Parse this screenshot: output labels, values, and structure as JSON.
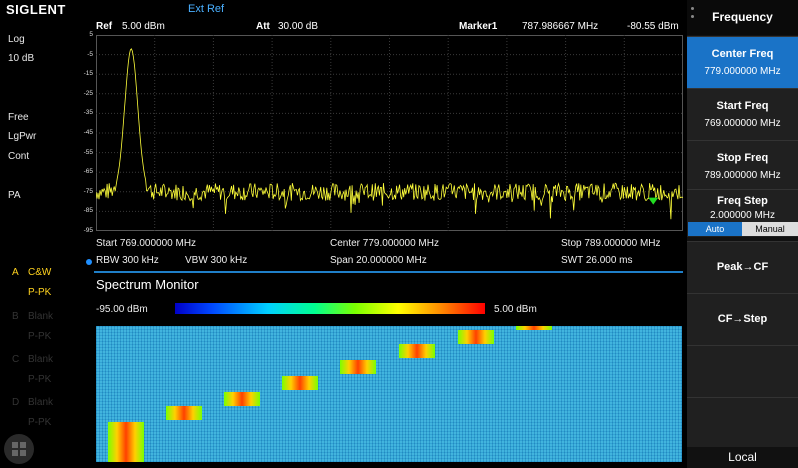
{
  "brand": "SIGLENT",
  "ext_ref": "Ext Ref",
  "left_status": {
    "scale": "Log",
    "div": "10 dB",
    "trigger": "Free",
    "det": "LgPwr",
    "sweep": "Cont",
    "preamp": "PA"
  },
  "traces": [
    {
      "letter": "A",
      "mode": "C&W",
      "det": "P-PK"
    },
    {
      "letter": "B",
      "mode": "Blank",
      "det": "P-PK"
    },
    {
      "letter": "C",
      "mode": "Blank",
      "det": "P-PK"
    },
    {
      "letter": "D",
      "mode": "Blank",
      "det": "P-PK"
    }
  ],
  "header": {
    "ref_label": "Ref",
    "ref_value": "5.00 dBm",
    "att_label": "Att",
    "att_value": "30.00 dB",
    "marker_label": "Marker1",
    "marker_freq": "787.986667 MHz",
    "marker_level": "-80.55 dBm"
  },
  "y_ticks": [
    "5",
    "-5",
    "-15",
    "-25",
    "-35",
    "-45",
    "-55",
    "-65",
    "-75",
    "-85",
    "-95"
  ],
  "freq_info": {
    "start": "Start  769.000000 MHz",
    "center": "Center  779.000000 MHz",
    "stop": "Stop  789.000000 MHz",
    "rbw": "RBW  300 kHz",
    "vbw": "VBW  300 kHz",
    "span": "Span    20.000000 MHz",
    "swt": "SWT  26.000 ms"
  },
  "spectrum_monitor": {
    "title": "Spectrum Monitor",
    "min": "-95.00 dBm",
    "max": "5.00 dBm"
  },
  "chart_data": {
    "type": "line",
    "x_unit": "MHz",
    "y_unit": "dBm",
    "xlim": [
      769,
      789
    ],
    "ylim": [
      -95,
      5
    ],
    "peak": {
      "x": 770.2,
      "y": -2
    },
    "noise_floor": -75,
    "marker": {
      "x": 787.986667,
      "y": -80.55
    }
  },
  "menu": {
    "title": "Frequency",
    "keys": [
      {
        "label": "Center Freq",
        "value": "779.000000 MHz"
      },
      {
        "label": "Start Freq",
        "value": "769.000000 MHz"
      },
      {
        "label": "Stop Freq",
        "value": "789.000000 MHz"
      },
      {
        "label": "Freq Step",
        "value": "2.000000 MHz"
      }
    ],
    "auto": "Auto",
    "manual": "Manual",
    "peak_cf": "Peak→CF",
    "cf_step": "CF→Step",
    "local": "Local"
  },
  "colors": {
    "accent": "#1a73c7",
    "trace": "#ffff3a",
    "marker": "#22dd22"
  }
}
